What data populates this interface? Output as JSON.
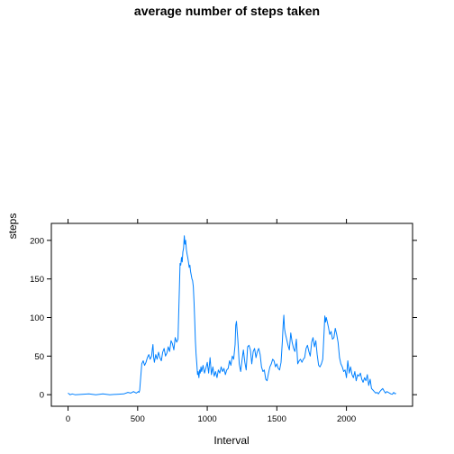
{
  "chart_data": {
    "type": "line",
    "title": "average number of steps taken",
    "xlabel": "Interval",
    "ylabel": "steps",
    "xlim": [
      -120,
      2475
    ],
    "ylim": [
      -15,
      222
    ],
    "xticks": [
      0,
      500,
      1000,
      1500,
      2000
    ],
    "yticks": [
      0,
      50,
      100,
      150,
      200
    ],
    "grid": false,
    "color": "#0080ff",
    "series": [
      {
        "x": [
          0,
          15,
          30,
          50,
          100,
          150,
          200,
          250,
          300,
          350,
          400,
          430,
          450,
          470,
          490,
          505,
          510,
          515,
          520,
          530,
          540,
          550,
          560,
          570,
          580,
          590,
          600,
          605,
          610,
          615,
          620,
          630,
          640,
          650,
          660,
          670,
          680,
          690,
          700,
          710,
          720,
          730,
          740,
          750,
          760,
          770,
          780,
          790,
          800,
          805,
          810,
          815,
          820,
          825,
          830,
          835,
          840,
          845,
          850,
          855,
          860,
          865,
          870,
          875,
          880,
          885,
          890,
          895,
          900,
          905,
          910,
          915,
          920,
          925,
          930,
          935,
          940,
          945,
          950,
          955,
          960,
          970,
          980,
          990,
          1000,
          1010,
          1020,
          1030,
          1040,
          1050,
          1060,
          1070,
          1080,
          1090,
          1100,
          1110,
          1120,
          1130,
          1140,
          1150,
          1160,
          1170,
          1180,
          1190,
          1200,
          1205,
          1210,
          1220,
          1230,
          1240,
          1250,
          1260,
          1270,
          1280,
          1290,
          1300,
          1310,
          1320,
          1330,
          1340,
          1350,
          1360,
          1370,
          1380,
          1390,
          1400,
          1410,
          1420,
          1430,
          1440,
          1450,
          1460,
          1470,
          1480,
          1490,
          1500,
          1510,
          1520,
          1530,
          1540,
          1545,
          1550,
          1555,
          1560,
          1570,
          1580,
          1590,
          1600,
          1610,
          1620,
          1630,
          1640,
          1650,
          1660,
          1670,
          1680,
          1690,
          1700,
          1710,
          1720,
          1730,
          1740,
          1750,
          1760,
          1770,
          1780,
          1790,
          1800,
          1810,
          1820,
          1830,
          1840,
          1845,
          1850,
          1855,
          1860,
          1870,
          1880,
          1890,
          1900,
          1910,
          1920,
          1930,
          1940,
          1950,
          1960,
          1970,
          1980,
          1990,
          2000,
          2010,
          2020,
          2030,
          2040,
          2050,
          2060,
          2070,
          2080,
          2090,
          2100,
          2110,
          2120,
          2130,
          2140,
          2150,
          2160,
          2170,
          2180,
          2190,
          2200,
          2210,
          2220,
          2230,
          2240,
          2250,
          2260,
          2270,
          2280,
          2290,
          2300,
          2310,
          2320,
          2330,
          2340,
          2350,
          2355
        ],
        "y": [
          2,
          0,
          1,
          0,
          0.5,
          1,
          0,
          1,
          0,
          0.5,
          1,
          3,
          2,
          4,
          2,
          4,
          3,
          6,
          18,
          40,
          44,
          38,
          42,
          48,
          52,
          46,
          50,
          58,
          65,
          48,
          42,
          52,
          46,
          55,
          48,
          44,
          55,
          60,
          50,
          54,
          62,
          56,
          70,
          66,
          58,
          74,
          68,
          72,
          140,
          170,
          168,
          178,
          172,
          185,
          190,
          206,
          195,
          200,
          188,
          182,
          178,
          172,
          165,
          168,
          160,
          155,
          150,
          148,
          140,
          120,
          95,
          70,
          52,
          40,
          26,
          30,
          22,
          32,
          28,
          36,
          30,
          38,
          28,
          34,
          42,
          28,
          48,
          26,
          36,
          24,
          30,
          22,
          32,
          28,
          36,
          30,
          34,
          26,
          32,
          34,
          44,
          38,
          50,
          46,
          65,
          90,
          95,
          70,
          40,
          30,
          45,
          58,
          42,
          32,
          62,
          64,
          58,
          40,
          56,
          60,
          48,
          56,
          60,
          52,
          36,
          30,
          32,
          20,
          18,
          28,
          36,
          40,
          46,
          44,
          36,
          40,
          34,
          32,
          42,
          70,
          90,
          103,
          86,
          80,
          72,
          64,
          58,
          80,
          68,
          60,
          56,
          72,
          40,
          44,
          46,
          42,
          46,
          48,
          60,
          64,
          56,
          50,
          68,
          74,
          62,
          70,
          52,
          38,
          36,
          40,
          46,
          84,
          102,
          94,
          100,
          96,
          88,
          78,
          82,
          72,
          74,
          86,
          78,
          68,
          48,
          40,
          36,
          30,
          32,
          22,
          44,
          28,
          36,
          26,
          22,
          30,
          18,
          26,
          24,
          28,
          20,
          16,
          22,
          18,
          26,
          12,
          20,
          8,
          6,
          4,
          2,
          3,
          1,
          4,
          6,
          8,
          5,
          2,
          4,
          3,
          2,
          1,
          0.5,
          3,
          1,
          2
        ]
      }
    ]
  }
}
